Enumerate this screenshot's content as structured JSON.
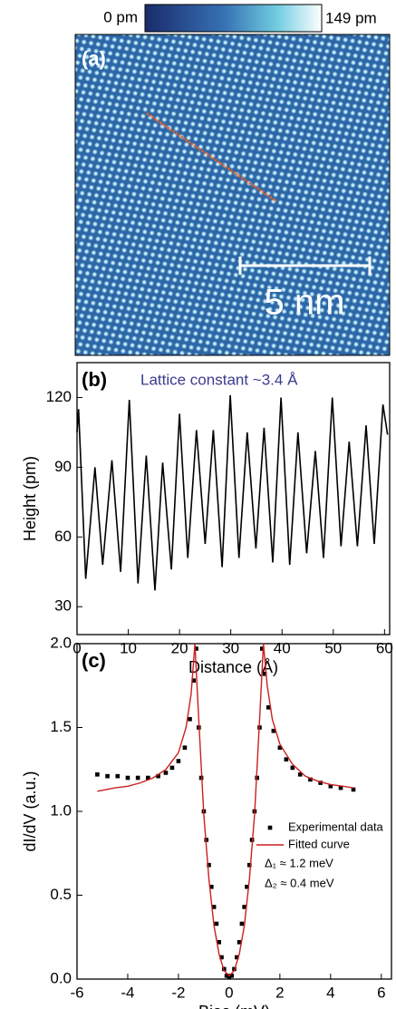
{
  "image_panel": {
    "label": "(a)",
    "colorbar_min": "0 pm",
    "colorbar_max": "149 pm",
    "scale_bar": "5 nm"
  },
  "chart_data": [
    {
      "type": "line",
      "label": "(b)",
      "annotation": "Lattice constant ~3.4 Å",
      "xlabel": "Distance (Å)",
      "ylabel": "Height (pm)",
      "color": "#000000",
      "x": [
        0,
        0.3,
        1.7,
        3.5,
        5.0,
        6.8,
        8.5,
        10.2,
        11.9,
        13.5,
        15.2,
        16.7,
        18.4,
        20.0,
        21.6,
        23.3,
        25.0,
        26.6,
        28.3,
        29.9,
        31.6,
        33.2,
        34.9,
        36.5,
        38.2,
        39.8,
        41.5,
        43.1,
        44.8,
        46.5,
        48.1,
        49.8,
        51.5,
        53.1,
        54.7,
        56.4,
        58.0,
        59.7,
        60.6
      ],
      "values": [
        105,
        115,
        42,
        90,
        48,
        93,
        45,
        119,
        40,
        95,
        37,
        92,
        46,
        113,
        51,
        106,
        57,
        106,
        47,
        121,
        51,
        105,
        55,
        107,
        49,
        120,
        48,
        105,
        53,
        97,
        51,
        120,
        56,
        101,
        56,
        108,
        57,
        117,
        104
      ],
      "xlim": [
        0,
        61
      ],
      "xticks": [
        0,
        10,
        20,
        30,
        40,
        50,
        60
      ],
      "ylim": [
        18,
        135
      ],
      "yticks": [
        30,
        60,
        90,
        120
      ]
    },
    {
      "type": "scatter",
      "label": "(c)",
      "xlabel": "Bias (mV)",
      "ylabel": "dI/dV (a.u.)",
      "annotations": [
        "Δ₁ ≈ 1.2 meV",
        "Δ₂ ≈ 0.4 meV"
      ],
      "series": [
        {
          "name": "Experimental data",
          "style": "markers",
          "color": "#000000",
          "x": [
            -5.2,
            -4.8,
            -4.4,
            -4.0,
            -3.6,
            -3.2,
            -2.8,
            -2.5,
            -2.25,
            -2.0,
            -1.75,
            -1.55,
            -1.4,
            -1.3,
            -1.2,
            -1.1,
            -1.0,
            -0.9,
            -0.8,
            -0.7,
            -0.6,
            -0.5,
            -0.4,
            -0.3,
            -0.2,
            -0.1,
            0,
            0.1,
            0.2,
            0.3,
            0.4,
            0.5,
            0.6,
            0.7,
            0.8,
            0.9,
            1.0,
            1.1,
            1.2,
            1.3,
            1.4,
            1.55,
            1.75,
            2.0,
            2.25,
            2.5,
            2.8,
            3.2,
            3.6,
            4.0,
            4.4,
            4.9
          ],
          "values": [
            1.22,
            1.21,
            1.21,
            1.2,
            1.2,
            1.2,
            1.21,
            1.23,
            1.26,
            1.3,
            1.38,
            1.55,
            1.78,
            1.97,
            1.5,
            1.2,
            1.0,
            0.83,
            0.68,
            0.55,
            0.43,
            0.33,
            0.22,
            0.13,
            0.06,
            0.02,
            0.01,
            0.02,
            0.06,
            0.13,
            0.22,
            0.33,
            0.43,
            0.55,
            0.68,
            0.83,
            1.0,
            1.2,
            1.5,
            1.97,
            1.82,
            1.62,
            1.48,
            1.38,
            1.31,
            1.26,
            1.22,
            1.19,
            1.17,
            1.15,
            1.14,
            1.13
          ]
        },
        {
          "name": "Fitted curve",
          "style": "line",
          "color": "#cc1f1f",
          "x": [
            -5.2,
            -4.5,
            -4.0,
            -3.5,
            -3.0,
            -2.5,
            -2.0,
            -1.7,
            -1.5,
            -1.35,
            -1.2,
            -1.0,
            -0.8,
            -0.6,
            -0.4,
            -0.2,
            0,
            0.2,
            0.4,
            0.6,
            0.8,
            1.0,
            1.2,
            1.35,
            1.5,
            1.7,
            2.0,
            2.5,
            3.0,
            3.5,
            4.0,
            4.5,
            4.9
          ],
          "values": [
            1.12,
            1.14,
            1.15,
            1.17,
            1.2,
            1.25,
            1.35,
            1.5,
            1.7,
            2.0,
            1.55,
            0.98,
            0.6,
            0.32,
            0.15,
            0.05,
            0.02,
            0.05,
            0.15,
            0.32,
            0.6,
            0.98,
            1.55,
            2.0,
            1.75,
            1.55,
            1.4,
            1.28,
            1.21,
            1.18,
            1.16,
            1.15,
            1.14
          ]
        }
      ],
      "xlim": [
        -6,
        6.4
      ],
      "xticks": [
        -6,
        -4,
        -2,
        0,
        2,
        4,
        6
      ],
      "ylim": [
        0,
        2
      ],
      "yticks": [
        {
          "value": 0,
          "label": "0.0"
        },
        0.5,
        {
          "value": 1,
          "label": "1.0"
        },
        1.5,
        {
          "value": 2,
          "label": "2.0"
        }
      ]
    }
  ]
}
